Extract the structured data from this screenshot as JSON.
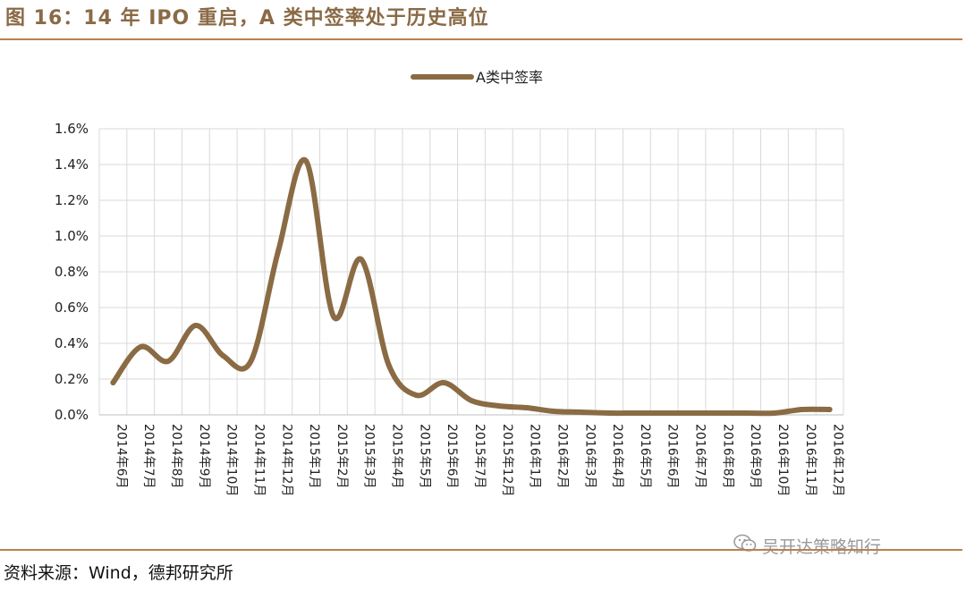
{
  "title": "图 16：14 年 IPO 重启，A 类中签率处于历史高位",
  "source": "资料来源：Wind，德邦研究所",
  "watermark": "吴开达策略知行",
  "colors": {
    "line": "#8a6b44",
    "grid": "#d9d9d9",
    "rule": "#b9814f",
    "title": "#8a6a46"
  },
  "chart_data": {
    "type": "line",
    "title": "",
    "xlabel": "",
    "ylabel": "",
    "legend_position": "top-center",
    "grid": true,
    "ylim": [
      0,
      0.016
    ],
    "y_ticks": [
      "0.0%",
      "0.2%",
      "0.4%",
      "0.6%",
      "0.8%",
      "1.0%",
      "1.2%",
      "1.4%",
      "1.6%"
    ],
    "categories": [
      "2014年6月",
      "2014年7月",
      "2014年8月",
      "2014年9月",
      "2014年10月",
      "2014年11月",
      "2014年12月",
      "2015年1月",
      "2015年2月",
      "2015年3月",
      "2015年4月",
      "2015年5月",
      "2015年6月",
      "2015年7月",
      "2015年12月",
      "2016年1月",
      "2016年2月",
      "2016年3月",
      "2016年4月",
      "2016年5月",
      "2016年6月",
      "2016年7月",
      "2016年8月",
      "2016年9月",
      "2016年10月",
      "2016年11月",
      "2016年12月"
    ],
    "series": [
      {
        "name": "A类中签率",
        "values": [
          0.0018,
          0.0038,
          0.003,
          0.005,
          0.0033,
          0.003,
          0.0092,
          0.0142,
          0.0055,
          0.0087,
          0.0028,
          0.0011,
          0.0018,
          0.0008,
          0.0005,
          0.0004,
          0.0002,
          0.00015,
          0.0001,
          0.0001,
          0.0001,
          0.0001,
          0.0001,
          0.0001,
          0.0001,
          0.0003,
          0.0003
        ]
      }
    ]
  }
}
